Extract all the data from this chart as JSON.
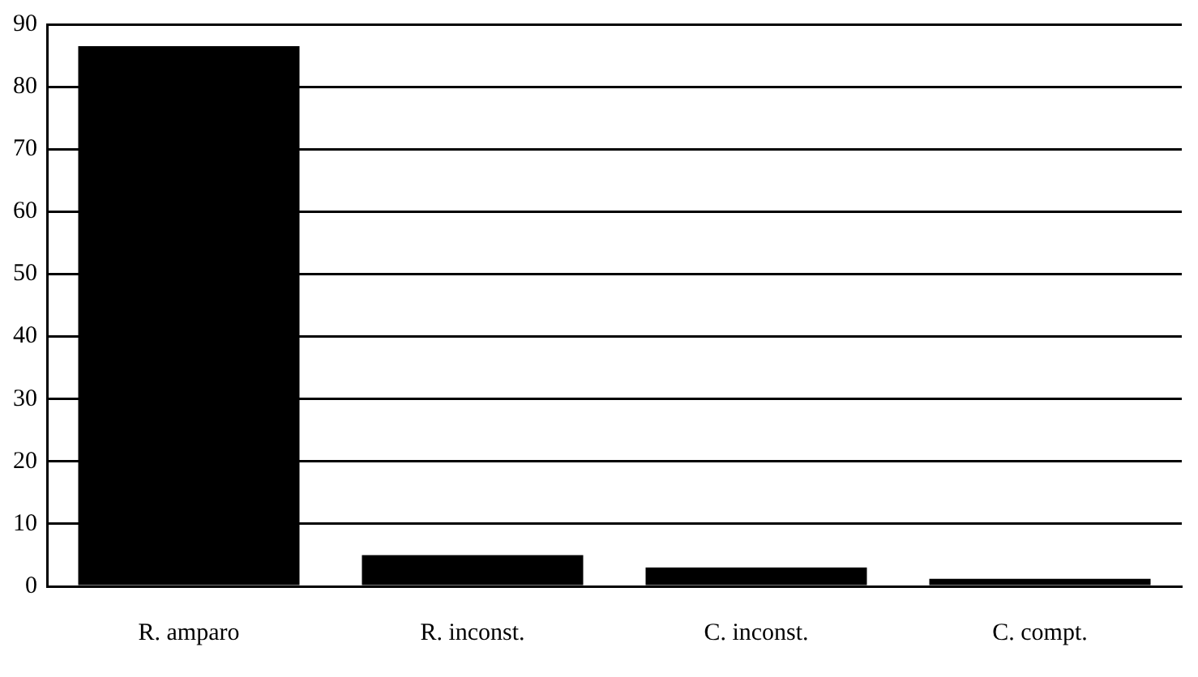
{
  "chart_data": {
    "type": "bar",
    "categories": [
      "R. amparo",
      "R. inconst.",
      "C. inconst.",
      "C. compt."
    ],
    "values": [
      86.5,
      5,
      3,
      1.2
    ],
    "color": "#000000",
    "ylim": [
      0,
      90
    ],
    "yticks": [
      0,
      10,
      20,
      30,
      40,
      50,
      60,
      70,
      80,
      90
    ],
    "grid": "y",
    "legend": false
  }
}
